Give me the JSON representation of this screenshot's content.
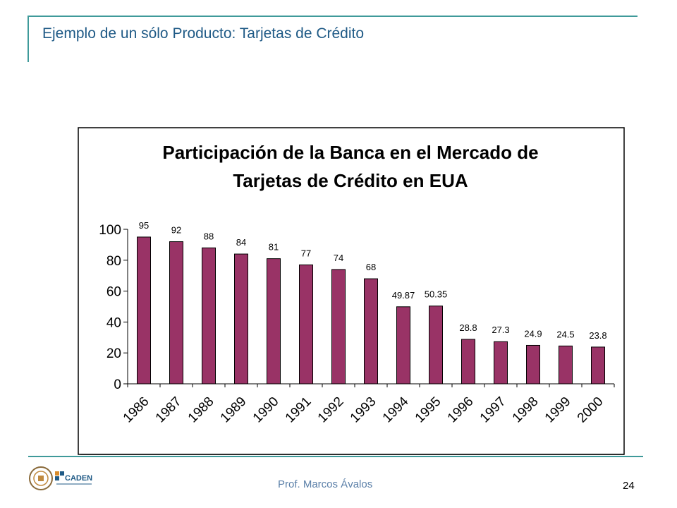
{
  "slide": {
    "title": "Ejemplo de un sólo Producto: Tarjetas de Crédito",
    "footer_author": "Prof. Marcos Ávalos",
    "page_number": "24",
    "logo_text": "CADEN"
  },
  "colors": {
    "accent": "#3f9a9a",
    "bar": "#993366",
    "title": "#1f5a86"
  },
  "chart_data": {
    "type": "bar",
    "title_lines": [
      "Participación de la Banca en el Mercado de",
      "Tarjetas de Crédito en EUA"
    ],
    "categories": [
      "1986",
      "1987",
      "1988",
      "1989",
      "1990",
      "1991",
      "1992",
      "1993",
      "1994",
      "1995",
      "1996",
      "1997",
      "1998",
      "1999",
      "2000"
    ],
    "values": [
      95,
      92,
      88,
      84,
      81,
      77,
      74,
      68,
      49.87,
      50.35,
      28.8,
      27.3,
      24.9,
      24.5,
      23.8
    ],
    "value_labels": [
      "95",
      "92",
      "88",
      "84",
      "81",
      "77",
      "74",
      "68",
      "49.87",
      "50.35",
      "28.8",
      "27.3",
      "24.9",
      "24.5",
      "23.8"
    ],
    "ylim": [
      0,
      100
    ],
    "yticks": [
      "0",
      "20",
      "40",
      "60",
      "80",
      "100"
    ],
    "xlabel": "",
    "ylabel": "",
    "grid": false,
    "legend": "none"
  }
}
